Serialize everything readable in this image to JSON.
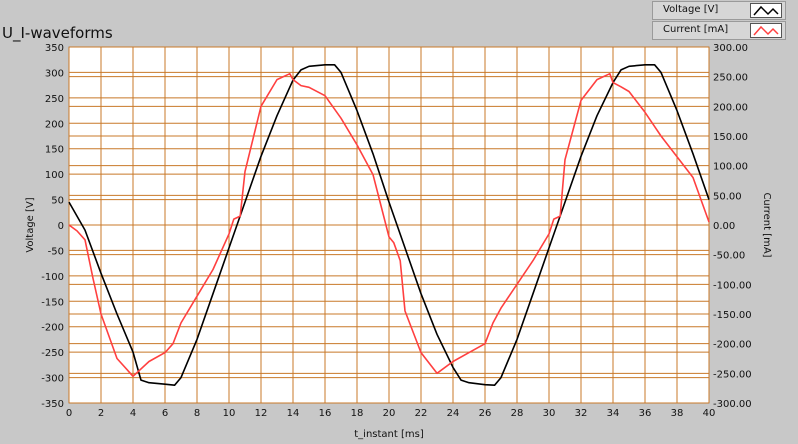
{
  "window": {
    "title": "U_I-waveforms"
  },
  "legend": {
    "items": [
      {
        "label": "Voltage [V]",
        "color": "#000000",
        "icon": "line-sample-icon"
      },
      {
        "label": "Current [mA]",
        "color": "#ff4040",
        "icon": "line-sample-icon"
      }
    ]
  },
  "colors": {
    "plot_background": "#ffffff",
    "grid": "#c87828",
    "frame": "#c8c8c8"
  },
  "chart_data": {
    "type": "line",
    "title": "U_I-waveforms",
    "xlabel": "t_instant [ms]",
    "ylabel": "Voltage [V]",
    "y2label": "Current [mA]",
    "xlim": [
      0,
      40
    ],
    "ylim": [
      -350,
      350
    ],
    "y2lim": [
      -300,
      300
    ],
    "grid": true,
    "legend_position": "top-right",
    "x_ticks": [
      "0",
      "2",
      "4",
      "6",
      "8",
      "10",
      "12",
      "14",
      "16",
      "18",
      "20",
      "22",
      "24",
      "26",
      "28",
      "30",
      "32",
      "34",
      "36",
      "38",
      "40"
    ],
    "y_ticks": [
      "350",
      "300",
      "250",
      "200",
      "150",
      "100",
      "50",
      "0",
      "-50",
      "-100",
      "-150",
      "-200",
      "-250",
      "-300",
      "-350"
    ],
    "y2_ticks": [
      "300.00",
      "250.00",
      "200.00",
      "150.00",
      "100.00",
      "50.00",
      "0.00",
      "-50.00",
      "-100.00",
      "-150.00",
      "-200.00",
      "-250.00",
      "-300.00"
    ],
    "series": [
      {
        "name": "Voltage [V]",
        "axis": "left",
        "color": "#000000",
        "x": [
          0,
          1,
          2,
          3,
          4,
          4.5,
          5,
          6,
          6.6,
          7,
          8,
          9,
          10,
          11,
          12,
          13,
          14,
          14.5,
          15,
          16,
          16.6,
          17,
          18,
          19,
          20,
          21,
          22,
          23,
          24,
          24.5,
          25,
          26,
          26.6,
          27,
          28,
          29,
          30,
          31,
          32,
          33,
          34,
          34.5,
          35,
          36,
          36.6,
          37,
          38,
          39,
          40
        ],
        "y": [
          45,
          -10,
          -95,
          -175,
          -250,
          -305,
          -310,
          -313,
          -315,
          -300,
          -225,
          -135,
          -45,
          45,
          135,
          215,
          285,
          305,
          312,
          315,
          315,
          300,
          225,
          140,
          45,
          -45,
          -135,
          -215,
          -280,
          -305,
          -310,
          -314,
          -315,
          -300,
          -225,
          -135,
          -45,
          45,
          135,
          215,
          280,
          305,
          312,
          315,
          315,
          300,
          225,
          140,
          50
        ]
      },
      {
        "name": "Current [mA]",
        "axis": "right",
        "color": "#ff4040",
        "x": [
          0,
          0.5,
          1,
          1.5,
          2,
          3,
          4,
          5,
          6,
          6.5,
          7,
          8,
          9,
          10,
          10.3,
          10.7,
          11,
          12,
          13,
          13.8,
          14,
          14.5,
          15,
          16,
          17,
          18,
          19,
          20,
          20.3,
          20.7,
          21,
          22,
          23,
          24,
          25,
          26,
          26.5,
          27,
          28,
          29,
          30,
          30.3,
          30.7,
          31,
          32,
          33,
          33.8,
          34,
          34.5,
          35,
          36,
          37,
          38,
          39,
          40
        ],
        "y": [
          0,
          -10,
          -25,
          -90,
          -150,
          -225,
          -255,
          -230,
          -215,
          -200,
          -165,
          -120,
          -75,
          -15,
          10,
          15,
          90,
          200,
          245,
          255,
          245,
          235,
          232,
          218,
          180,
          135,
          85,
          -20,
          -30,
          -60,
          -145,
          -215,
          -250,
          -230,
          -215,
          -200,
          -165,
          -140,
          -100,
          -60,
          -15,
          10,
          15,
          110,
          210,
          245,
          255,
          240,
          233,
          225,
          190,
          150,
          115,
          80,
          5
        ]
      }
    ]
  }
}
